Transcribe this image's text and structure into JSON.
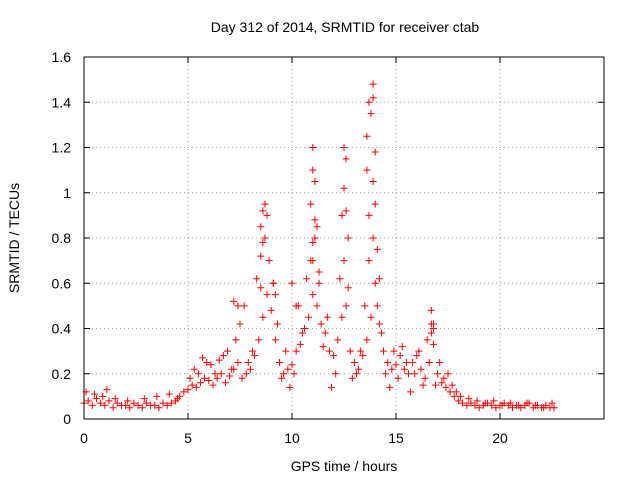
{
  "chart_data": {
    "type": "scatter",
    "title": "Day 312 of 2014, SRMTID for receiver ctab",
    "xlabel": "GPS time / hours",
    "ylabel": "SRMTID / TECUs",
    "xlim": [
      0,
      25
    ],
    "ylim": [
      0,
      1.6
    ],
    "xticks": [
      0,
      5,
      10,
      15,
      20
    ],
    "xtick_labels": [
      "0",
      "5",
      "10",
      "15",
      "20"
    ],
    "yticks": [
      0,
      0.2,
      0.4,
      0.6,
      0.8,
      1.0,
      1.2,
      1.4,
      1.6
    ],
    "ytick_labels": [
      "0",
      "0.2",
      "0.4",
      "0.6",
      "0.8",
      "1",
      "1.2",
      "1.4",
      "1.6"
    ],
    "grid": true,
    "marker": "+",
    "marker_color": "#ff0000",
    "series": [
      {
        "name": "SRMTID",
        "x": [
          0.0,
          0.2,
          0.4,
          0.6,
          0.8,
          1.0,
          1.2,
          1.4,
          1.6,
          1.8,
          2.0,
          2.2,
          2.4,
          2.6,
          2.8,
          3.0,
          3.2,
          3.4,
          3.6,
          3.8,
          4.0,
          4.2,
          4.4,
          4.6,
          4.8,
          5.0,
          5.2,
          5.4,
          5.6,
          5.8,
          6.0,
          6.2,
          6.4,
          6.6,
          6.8,
          7.0,
          7.2,
          7.4,
          7.6,
          7.8,
          8.0,
          8.2,
          8.4,
          8.6,
          8.8,
          9.0,
          9.2,
          9.4,
          9.6,
          9.8,
          10.0,
          10.2,
          10.4,
          10.6,
          10.8,
          11.0,
          11.2,
          11.4,
          11.6,
          11.8,
          12.0,
          12.2,
          12.4,
          12.6,
          12.8,
          13.0,
          13.2,
          13.4,
          13.6,
          13.8,
          14.0,
          14.2,
          14.4,
          14.6,
          14.8,
          15.0,
          15.2,
          15.4,
          15.6,
          15.8,
          16.0,
          16.2,
          16.4,
          16.6,
          16.8,
          17.0,
          17.2,
          17.4,
          17.6,
          17.8,
          18.0,
          18.2,
          18.4,
          18.6,
          18.8,
          19.0,
          19.2,
          19.4,
          19.6,
          19.8,
          20.0,
          20.2,
          20.4,
          20.6,
          20.8,
          21.0,
          21.2,
          21.4,
          21.6,
          21.8,
          22.0,
          22.2,
          22.4,
          22.6,
          0.1,
          0.5,
          0.9,
          1.1,
          1.5,
          2.1,
          2.9,
          3.5,
          4.1,
          4.5,
          5.1,
          5.3,
          5.5,
          5.7,
          5.9,
          6.1,
          6.3,
          6.5,
          6.7,
          6.9,
          7.1,
          7.3,
          7.5,
          7.7,
          7.9,
          8.1,
          8.3,
          8.5,
          8.7,
          8.9,
          9.1,
          9.3,
          9.5,
          9.7,
          9.9,
          10.1,
          10.3,
          10.5,
          10.7,
          10.9,
          11.1,
          11.3,
          11.5,
          11.7,
          11.9,
          12.1,
          12.3,
          12.5,
          12.7,
          12.9,
          13.1,
          13.3,
          13.5,
          13.7,
          13.9,
          14.1,
          14.3,
          14.5,
          14.7,
          14.9,
          15.1,
          15.3,
          15.5,
          15.7,
          15.9,
          16.1,
          16.3,
          16.5,
          16.7,
          16.9,
          17.1,
          17.3,
          17.5,
          17.7,
          17.9,
          18.1,
          18.5,
          18.9,
          19.3,
          19.7,
          20.1,
          20.5,
          20.9,
          21.3,
          21.7,
          22.1,
          22.5,
          7.2,
          7.4,
          8.5,
          8.6,
          8.7,
          8.8,
          8.6,
          8.5,
          9.1,
          9.2,
          10.0,
          10.2,
          10.9,
          11.0,
          11.0,
          11.1,
          11.1,
          11.0,
          11.2,
          11.3,
          11.0,
          12.5,
          12.6,
          12.5,
          12.6,
          12.7,
          12.4,
          13.6,
          13.7,
          13.8,
          13.9,
          13.9,
          14.0,
          13.9,
          14.0,
          13.6,
          13.7,
          14.1,
          14.2,
          16.7,
          16.8,
          16.7,
          16.8
        ],
        "y": [
          0.07,
          0.08,
          0.06,
          0.09,
          0.07,
          0.06,
          0.08,
          0.05,
          0.07,
          0.06,
          0.06,
          0.05,
          0.07,
          0.06,
          0.05,
          0.07,
          0.06,
          0.06,
          0.05,
          0.07,
          0.06,
          0.07,
          0.08,
          0.1,
          0.12,
          0.13,
          0.15,
          0.14,
          0.16,
          0.18,
          0.17,
          0.15,
          0.18,
          0.2,
          0.16,
          0.19,
          0.22,
          0.25,
          0.18,
          0.2,
          0.22,
          0.28,
          0.35,
          0.45,
          0.55,
          0.48,
          0.35,
          0.25,
          0.2,
          0.22,
          0.24,
          0.3,
          0.33,
          0.4,
          0.45,
          0.55,
          0.5,
          0.42,
          0.38,
          0.3,
          0.28,
          0.35,
          0.45,
          0.5,
          0.3,
          0.25,
          0.22,
          0.28,
          0.35,
          0.45,
          0.6,
          0.42,
          0.3,
          0.25,
          0.22,
          0.24,
          0.28,
          0.22,
          0.2,
          0.25,
          0.28,
          0.22,
          0.18,
          0.25,
          0.4,
          0.2,
          0.16,
          0.14,
          0.12,
          0.1,
          0.08,
          0.07,
          0.06,
          0.07,
          0.06,
          0.05,
          0.06,
          0.07,
          0.06,
          0.05,
          0.06,
          0.07,
          0.06,
          0.05,
          0.06,
          0.05,
          0.06,
          0.07,
          0.05,
          0.06,
          0.05,
          0.06,
          0.05,
          0.05,
          0.12,
          0.11,
          0.1,
          0.13,
          0.09,
          0.08,
          0.09,
          0.1,
          0.11,
          0.09,
          0.18,
          0.22,
          0.2,
          0.27,
          0.25,
          0.24,
          0.2,
          0.26,
          0.28,
          0.3,
          0.22,
          0.35,
          0.42,
          0.5,
          0.25,
          0.3,
          0.62,
          0.72,
          0.8,
          0.7,
          0.6,
          0.42,
          0.18,
          0.3,
          0.14,
          0.2,
          0.5,
          0.38,
          0.62,
          0.7,
          0.8,
          0.6,
          0.32,
          0.45,
          0.14,
          0.2,
          0.62,
          0.7,
          0.58,
          0.18,
          0.2,
          0.3,
          0.5,
          0.7,
          0.8,
          0.5,
          0.38,
          0.2,
          0.14,
          0.3,
          0.18,
          0.32,
          0.25,
          0.12,
          0.2,
          0.3,
          0.15,
          0.35,
          0.42,
          0.15,
          0.25,
          0.18,
          0.2,
          0.15,
          0.12,
          0.1,
          0.09,
          0.08,
          0.07,
          0.08,
          0.06,
          0.07,
          0.06,
          0.07,
          0.06,
          0.05,
          0.07,
          0.52,
          0.5,
          0.85,
          0.92,
          0.95,
          0.9,
          0.78,
          0.58,
          0.6,
          0.55,
          0.6,
          0.5,
          0.95,
          1.2,
          1.1,
          1.05,
          0.88,
          0.78,
          0.85,
          0.65,
          0.7,
          1.2,
          1.15,
          1.02,
          0.92,
          0.8,
          0.9,
          1.25,
          1.4,
          1.35,
          1.48,
          1.42,
          1.18,
          1.05,
          0.95,
          1.1,
          0.9,
          0.75,
          0.62,
          0.48,
          0.42,
          0.38,
          0.33
        ]
      }
    ]
  }
}
